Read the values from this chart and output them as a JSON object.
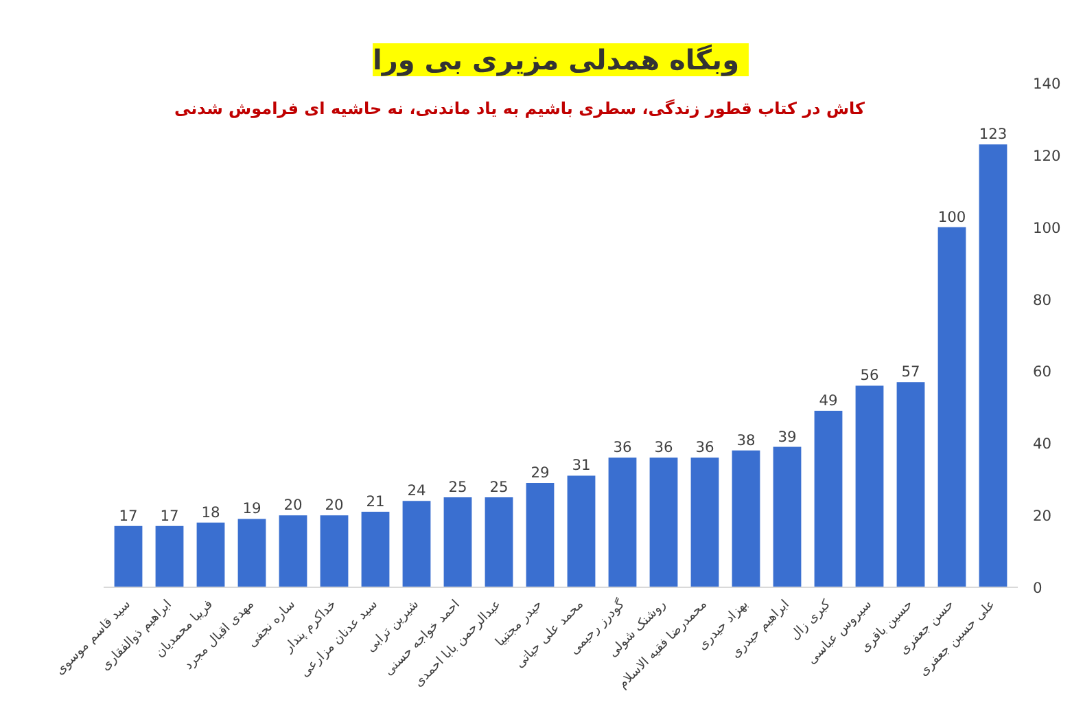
{
  "chart_data": {
    "type": "bar",
    "title": "وبگاه همدلی مزیری  بی ورا",
    "subtitle": "کاش در کتاب قطور زندگی، سطری باشیم به یاد ماندنی، نه حاشیه ای فراموش شدنی",
    "categories": [
      "سید قاسم موسوی",
      "ابراهیم ذوالفقاری",
      "فریبا محمدیان",
      "مهدی اقبال مجرد",
      "ساره نجفی",
      "خداکرم پندار",
      "سید عدنان مزارعی",
      "شیرین ترابی",
      "احمد خواجه حسنی",
      "عبدالرحمن بابا احمدی",
      "حیدر مجتبیا",
      "محمد علی حیاتی",
      "گودرز رحیمی",
      "روشنک شولی",
      "محمدرضا فقیه الاسلام",
      "بهزاد حیدری",
      "ابراهیم حیدری",
      "کبری زال",
      "سیروس عباسی",
      "حسین باقری",
      "حسن جعفری",
      "علی حسین جعفری"
    ],
    "values": [
      17,
      17,
      18,
      19,
      20,
      20,
      21,
      24,
      25,
      25,
      29,
      31,
      36,
      36,
      36,
      38,
      39,
      49,
      56,
      57,
      100,
      123
    ],
    "color": "#3a6fd0",
    "ylim": [
      0,
      140
    ],
    "yticks": [
      0,
      20,
      40,
      60,
      80,
      100,
      120,
      140
    ],
    "data_labels": true,
    "grid": false
  }
}
